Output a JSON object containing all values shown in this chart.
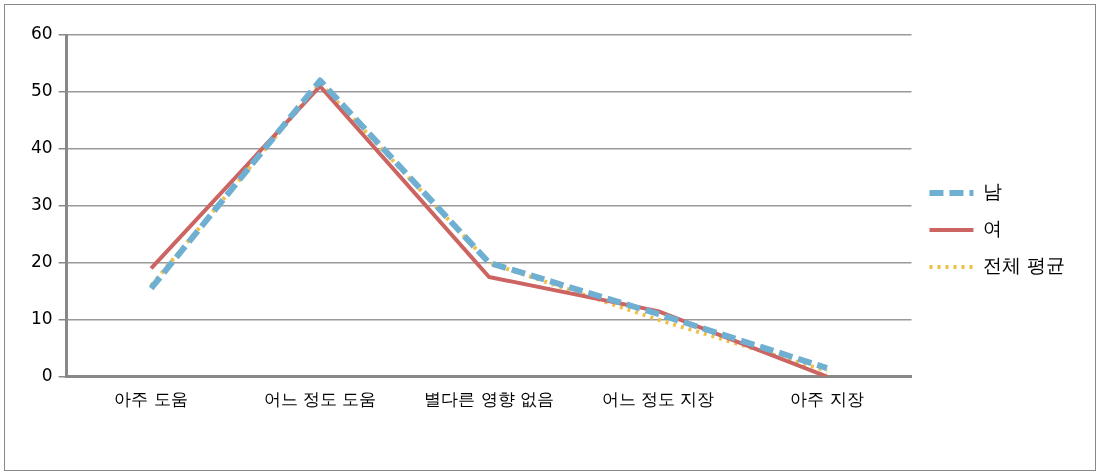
{
  "chart_data": {
    "type": "line",
    "categories": [
      "아주 도움",
      "어느 정도 도움",
      "별다른 영향 없음",
      "어느 정도 지장",
      "아주 지장"
    ],
    "series": [
      {
        "name": "남",
        "color": "#6fb0d2",
        "values": [
          15.5,
          52,
          20,
          11,
          1.5
        ],
        "line_style": "dashed"
      },
      {
        "name": "여",
        "color": "#cc6462",
        "values": [
          19,
          51,
          17.5,
          11.5,
          0
        ],
        "line_style": "solid"
      },
      {
        "name": "전체 평균",
        "color": "#eec04a",
        "values": [
          16,
          51.5,
          20,
          10,
          1
        ],
        "line_style": "dotted"
      }
    ],
    "ylim": [
      0,
      60
    ],
    "yticks": [
      0,
      10,
      20,
      30,
      40,
      50,
      60
    ],
    "grid": "y",
    "legend": "right",
    "marker": "none"
  }
}
